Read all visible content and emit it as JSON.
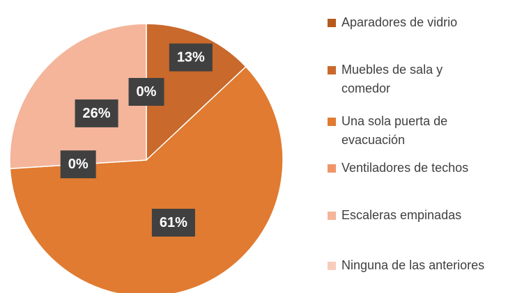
{
  "chart_data": {
    "type": "pie",
    "categories": [
      "Aparadores de vidrio",
      "Muebles de sala y comedor",
      "Una sola puerta de evacuación",
      "Ventiladores de techos",
      "Escaleras empinadas",
      "Ninguna de las anteriores"
    ],
    "values": [
      0,
      13,
      61,
      0,
      26,
      0
    ],
    "value_labels": [
      "0%",
      "13%",
      "61%",
      "0%",
      "26%",
      null
    ],
    "colors": [
      "#b65a1e",
      "#c9692b",
      "#e07b31",
      "#f0956a",
      "#f4b59b",
      "#f8cdbb"
    ]
  }
}
